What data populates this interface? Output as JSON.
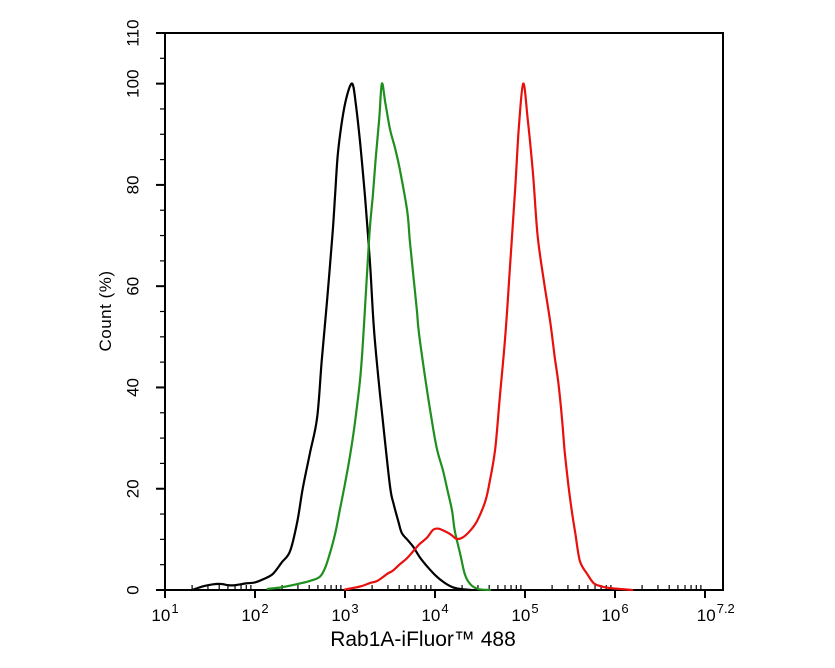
{
  "page": {
    "background": "#ffffff"
  },
  "chart_data": {
    "type": "line",
    "chart_kind": "flow-cytometry-histogram-overlay",
    "title": "",
    "xlabel": "Rab1A-iFluor™ 488",
    "ylabel": "Count (%)",
    "x_scale": "log10",
    "xlim_log": [
      1,
      7.2
    ],
    "ylim": [
      0,
      110
    ],
    "grid": false,
    "legend": null,
    "axis_color": "#000000",
    "x_major_ticks_log": [
      1,
      2,
      3,
      4,
      5,
      6,
      7
    ],
    "x_tick_labels": [
      {
        "log": 1.0,
        "base": "10",
        "exp": "1"
      },
      {
        "log": 2.0,
        "base": "10",
        "exp": "2"
      },
      {
        "log": 3.0,
        "base": "10",
        "exp": "3"
      },
      {
        "log": 4.0,
        "base": "10",
        "exp": "4"
      },
      {
        "log": 5.0,
        "base": "10",
        "exp": "5"
      },
      {
        "log": 6.0,
        "base": "10",
        "exp": "6"
      },
      {
        "log": 7.12,
        "base": "10",
        "exp": "7.2"
      }
    ],
    "y_major_ticks": [
      0,
      20,
      40,
      60,
      80,
      100,
      110
    ],
    "y_minor_tick_step": 5,
    "series": [
      {
        "name": "black-curve",
        "color": "#000000",
        "points": [
          [
            1.3,
            0
          ],
          [
            1.44,
            0.8
          ],
          [
            1.6,
            1.2
          ],
          [
            1.74,
            0.9
          ],
          [
            1.9,
            1.3
          ],
          [
            2.0,
            1.5
          ],
          [
            2.1,
            2.2
          ],
          [
            2.2,
            3.2
          ],
          [
            2.3,
            5.5
          ],
          [
            2.39,
            7.7
          ],
          [
            2.47,
            13.5
          ],
          [
            2.53,
            20
          ],
          [
            2.61,
            27
          ],
          [
            2.69,
            34
          ],
          [
            2.74,
            45
          ],
          [
            2.8,
            57
          ],
          [
            2.86,
            70
          ],
          [
            2.89,
            78
          ],
          [
            2.92,
            86
          ],
          [
            2.97,
            93
          ],
          [
            3.02,
            97.5
          ],
          [
            3.08,
            100
          ],
          [
            3.12,
            96
          ],
          [
            3.17,
            88
          ],
          [
            3.23,
            76
          ],
          [
            3.28,
            64
          ],
          [
            3.32,
            52
          ],
          [
            3.37,
            42
          ],
          [
            3.42,
            33.5
          ],
          [
            3.5,
            20.5
          ],
          [
            3.54,
            17
          ],
          [
            3.59,
            13.7
          ],
          [
            3.63,
            11.3
          ],
          [
            3.7,
            9.8
          ],
          [
            3.76,
            8.5
          ],
          [
            3.83,
            6.5
          ],
          [
            3.92,
            4.5
          ],
          [
            4.01,
            2.8
          ],
          [
            4.1,
            1.5
          ],
          [
            4.19,
            0.6
          ],
          [
            4.28,
            0.2
          ],
          [
            4.4,
            0
          ]
        ]
      },
      {
        "name": "green-curve",
        "color": "#1f8f1f",
        "points": [
          [
            2.14,
            0.2
          ],
          [
            2.28,
            0.5
          ],
          [
            2.4,
            0.9
          ],
          [
            2.5,
            1.3
          ],
          [
            2.61,
            1.8
          ],
          [
            2.72,
            2.6
          ],
          [
            2.78,
            4.4
          ],
          [
            2.83,
            7.1
          ],
          [
            2.89,
            11.1
          ],
          [
            2.94,
            15.6
          ],
          [
            3.0,
            21
          ],
          [
            3.06,
            27
          ],
          [
            3.11,
            33
          ],
          [
            3.17,
            42
          ],
          [
            3.21,
            52
          ],
          [
            3.27,
            70
          ],
          [
            3.31,
            78
          ],
          [
            3.34,
            85
          ],
          [
            3.38,
            93
          ],
          [
            3.41,
            100
          ],
          [
            3.45,
            96
          ],
          [
            3.5,
            91
          ],
          [
            3.56,
            87
          ],
          [
            3.61,
            83
          ],
          [
            3.69,
            75
          ],
          [
            3.72,
            69
          ],
          [
            3.76,
            62
          ],
          [
            3.8,
            55
          ],
          [
            3.82,
            51
          ],
          [
            3.89,
            42
          ],
          [
            3.96,
            34
          ],
          [
            4.02,
            28
          ],
          [
            4.09,
            23.5
          ],
          [
            4.14,
            19.6
          ],
          [
            4.19,
            15.6
          ],
          [
            4.22,
            11.7
          ],
          [
            4.28,
            7.1
          ],
          [
            4.33,
            3.2
          ],
          [
            4.39,
            1.2
          ],
          [
            4.48,
            0.2
          ],
          [
            4.61,
            0
          ]
        ]
      },
      {
        "name": "red-curve",
        "color": "#e8100c",
        "points": [
          [
            3.0,
            0.1
          ],
          [
            3.09,
            0.4
          ],
          [
            3.19,
            0.8
          ],
          [
            3.28,
            1.4
          ],
          [
            3.36,
            1.8
          ],
          [
            3.47,
            3.2
          ],
          [
            3.53,
            3.8
          ],
          [
            3.61,
            5.1
          ],
          [
            3.69,
            6.3
          ],
          [
            3.76,
            7.7
          ],
          [
            3.83,
            9.1
          ],
          [
            3.91,
            10.3
          ],
          [
            3.98,
            11.9
          ],
          [
            4.04,
            12.1
          ],
          [
            4.11,
            11.6
          ],
          [
            4.18,
            10.9
          ],
          [
            4.24,
            10.1
          ],
          [
            4.31,
            10.4
          ],
          [
            4.39,
            11.7
          ],
          [
            4.47,
            13.7
          ],
          [
            4.56,
            17.6
          ],
          [
            4.61,
            21.6
          ],
          [
            4.67,
            28
          ],
          [
            4.72,
            38
          ],
          [
            4.78,
            50
          ],
          [
            4.83,
            63
          ],
          [
            4.89,
            79
          ],
          [
            4.93,
            91
          ],
          [
            4.98,
            100
          ],
          [
            5.03,
            93
          ],
          [
            5.09,
            82
          ],
          [
            5.14,
            70
          ],
          [
            5.21,
            61
          ],
          [
            5.28,
            53
          ],
          [
            5.33,
            46
          ],
          [
            5.37,
            41
          ],
          [
            5.41,
            34
          ],
          [
            5.44,
            27.5
          ],
          [
            5.48,
            21
          ],
          [
            5.52,
            15.6
          ],
          [
            5.56,
            11.1
          ],
          [
            5.61,
            5.7
          ],
          [
            5.69,
            3.2
          ],
          [
            5.76,
            1.4
          ],
          [
            5.83,
            0.8
          ],
          [
            5.94,
            0.4
          ],
          [
            6.06,
            0.2
          ],
          [
            6.19,
            0
          ]
        ]
      }
    ]
  }
}
